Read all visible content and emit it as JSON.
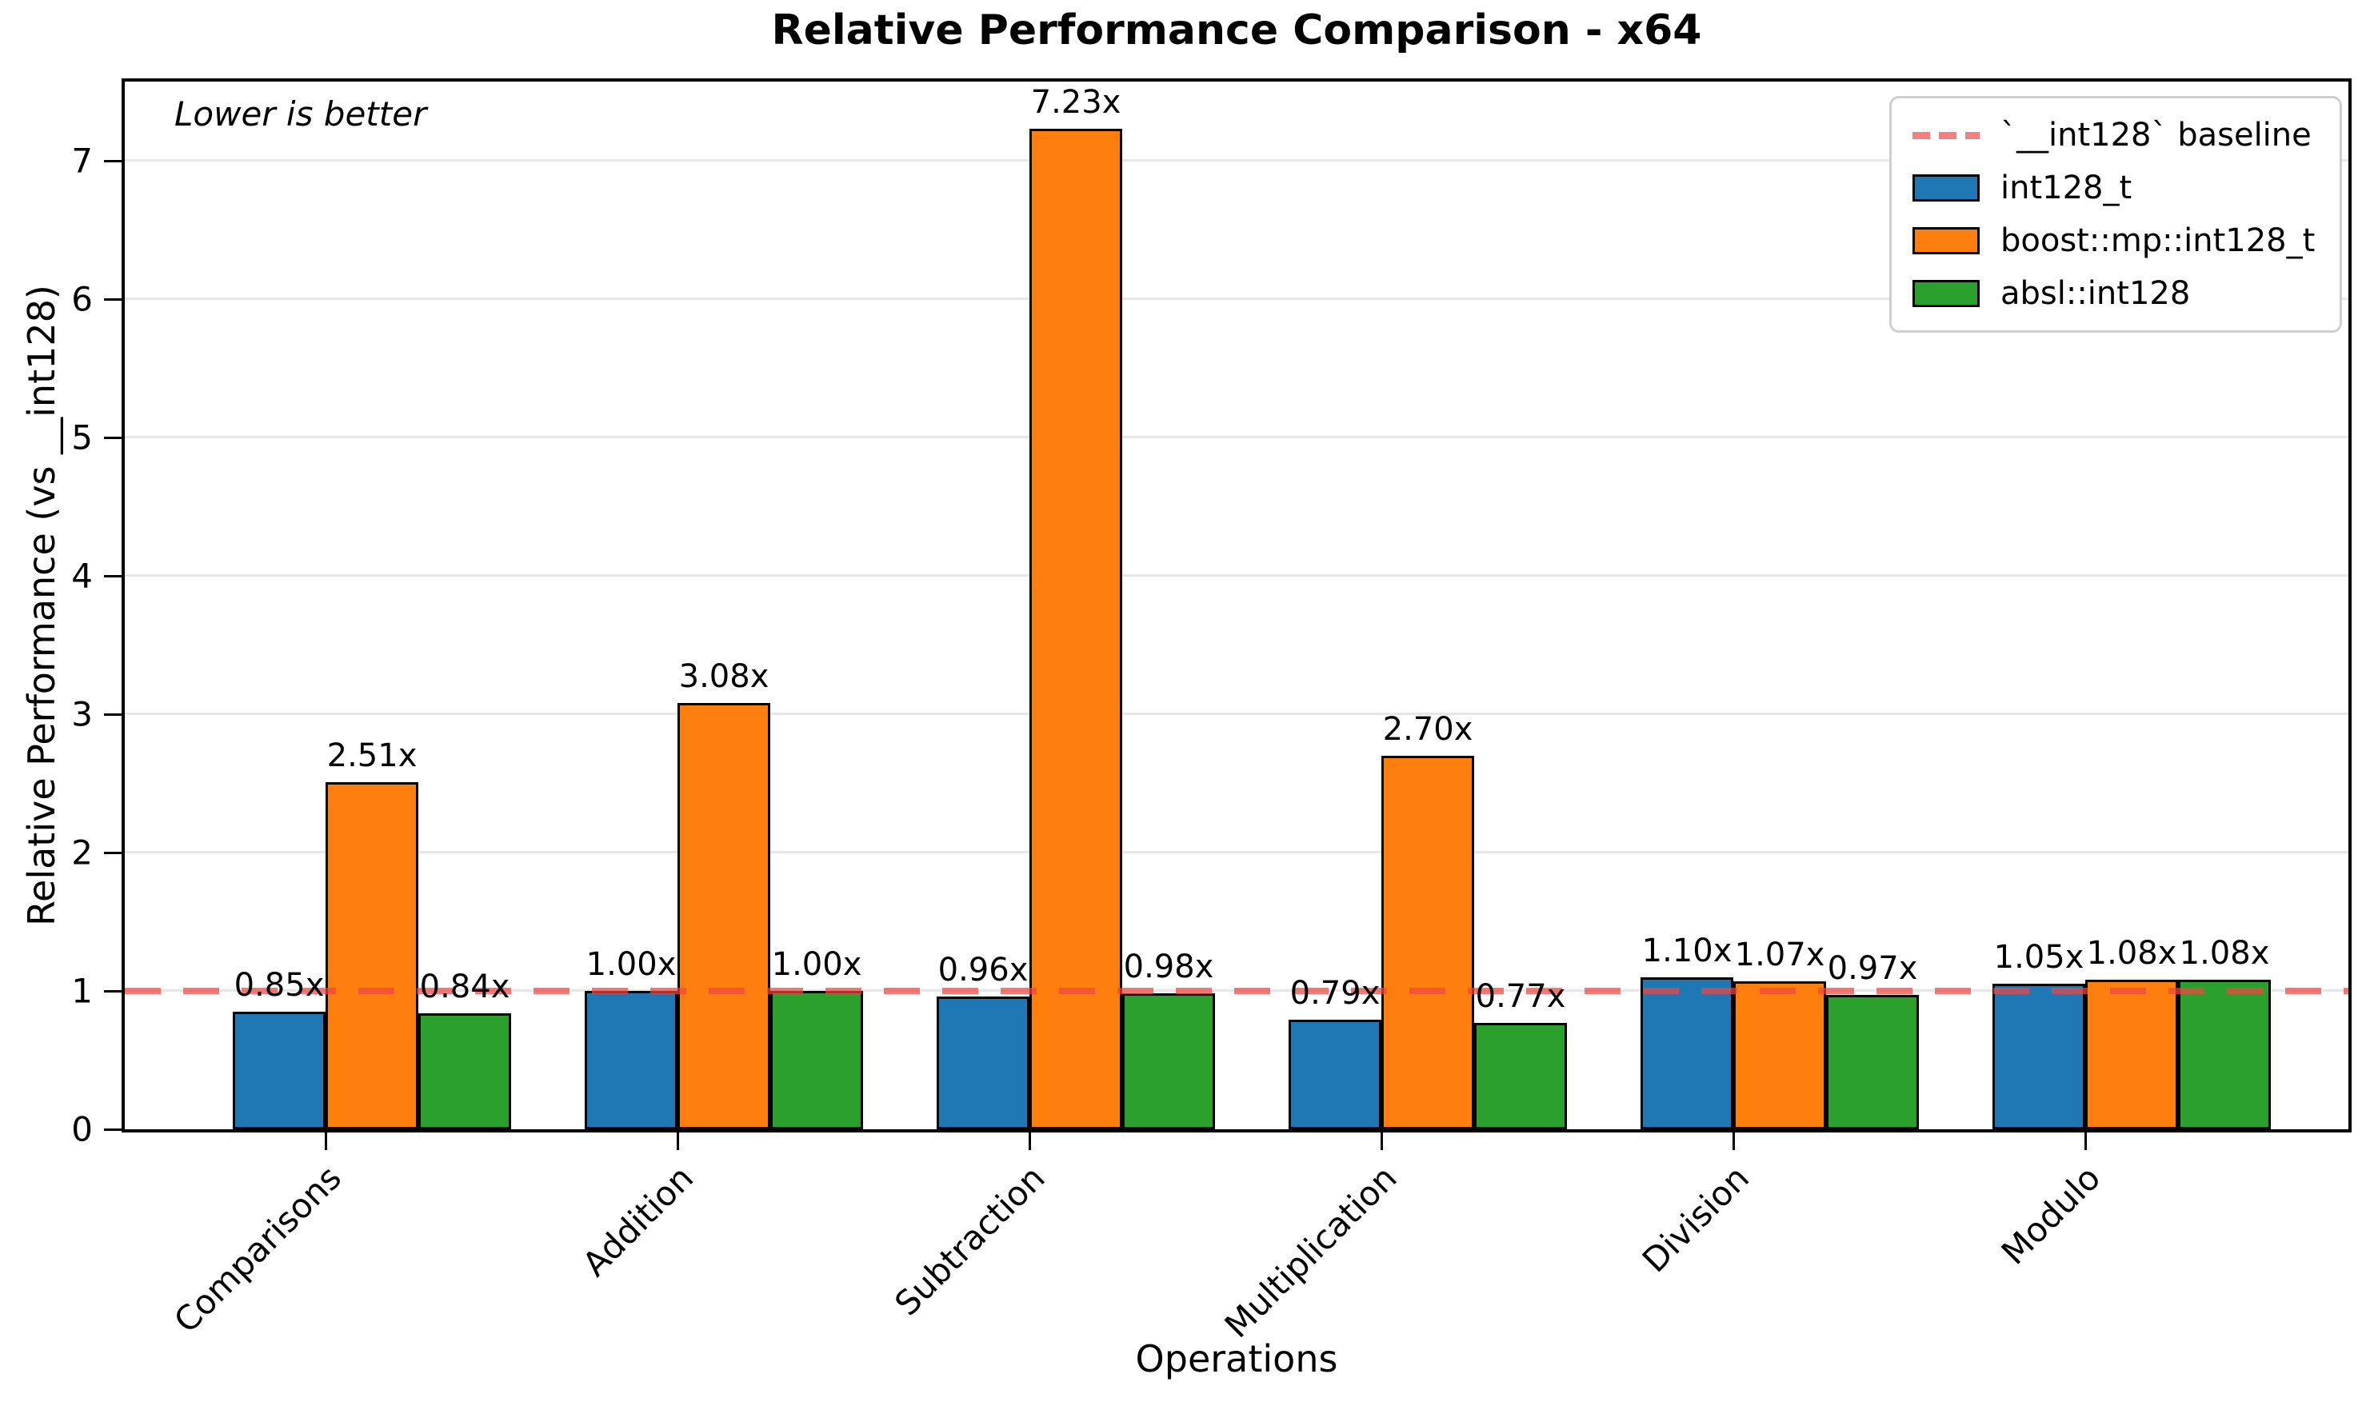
{
  "title": "Relative Performance Comparison - x64",
  "annotation": "Lower is better",
  "colors": {
    "blue": "#1f77b4",
    "orange": "#ff7f0e",
    "green": "#2ca02c",
    "baseline_line": "#ef4642",
    "grid": "#e7e7e7"
  },
  "chart_data": {
    "type": "bar",
    "title": "Relative Performance Comparison - x64",
    "xlabel": "Operations",
    "ylabel": "Relative Performance (vs __int128)",
    "categories": [
      "Comparisons",
      "Addition",
      "Subtraction",
      "Multiplication",
      "Division",
      "Modulo"
    ],
    "series": [
      {
        "name": "int128_t",
        "color": "#1f77b4",
        "values": [
          0.85,
          1.0,
          0.96,
          0.79,
          1.1,
          1.05
        ],
        "labels": [
          "0.85x",
          "1.00x",
          "0.96x",
          "0.79x",
          "1.10x",
          "1.05x"
        ]
      },
      {
        "name": "boost::mp::int128_t",
        "color": "#ff7f0e",
        "values": [
          2.51,
          3.08,
          7.23,
          2.7,
          1.07,
          1.08
        ],
        "labels": [
          "2.51x",
          "3.08x",
          "7.23x",
          "2.70x",
          "1.07x",
          "1.08x"
        ]
      },
      {
        "name": "absl::int128",
        "color": "#2ca02c",
        "values": [
          0.84,
          1.0,
          0.98,
          0.77,
          0.97,
          1.08
        ],
        "labels": [
          "0.84x",
          "1.00x",
          "0.98x",
          "0.77x",
          "0.97x",
          "1.08x"
        ]
      }
    ],
    "baseline": {
      "value": 1.0,
      "label": "`__int128` baseline"
    },
    "yticks": [
      0,
      1,
      2,
      3,
      4,
      5,
      6,
      7
    ],
    "ylim": [
      0,
      7.62
    ],
    "grid": "horizontal",
    "legend_position": "upper right",
    "annotation": "Lower is better"
  }
}
